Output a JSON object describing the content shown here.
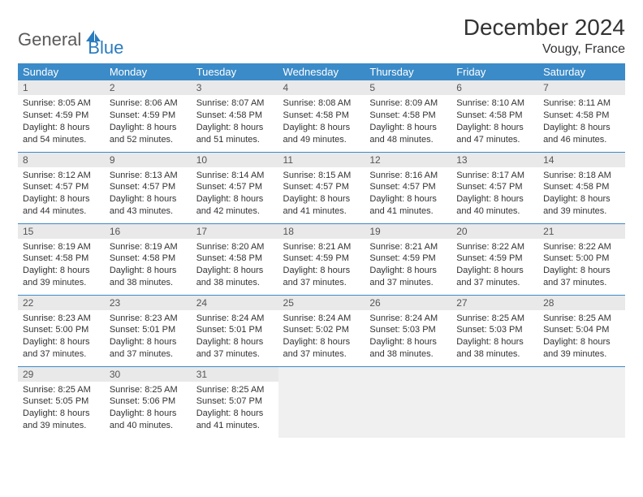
{
  "logo": {
    "text1": "General",
    "text2": "Blue"
  },
  "title": "December 2024",
  "location": "Vougy, France",
  "colors": {
    "header_bg": "#3b8bc8",
    "header_text": "#ffffff",
    "row_divider": "#3b8bc8",
    "daynum_bg": "#e9e9e9",
    "empty_bg": "#f0f0f0",
    "body_text": "#333333",
    "logo_gray": "#5a5a5a",
    "logo_blue": "#2b7bbf"
  },
  "day_headers": [
    "Sunday",
    "Monday",
    "Tuesday",
    "Wednesday",
    "Thursday",
    "Friday",
    "Saturday"
  ],
  "weeks": [
    [
      {
        "n": "1",
        "sr": "Sunrise: 8:05 AM",
        "ss": "Sunset: 4:59 PM",
        "dl": "Daylight: 8 hours and 54 minutes."
      },
      {
        "n": "2",
        "sr": "Sunrise: 8:06 AM",
        "ss": "Sunset: 4:59 PM",
        "dl": "Daylight: 8 hours and 52 minutes."
      },
      {
        "n": "3",
        "sr": "Sunrise: 8:07 AM",
        "ss": "Sunset: 4:58 PM",
        "dl": "Daylight: 8 hours and 51 minutes."
      },
      {
        "n": "4",
        "sr": "Sunrise: 8:08 AM",
        "ss": "Sunset: 4:58 PM",
        "dl": "Daylight: 8 hours and 49 minutes."
      },
      {
        "n": "5",
        "sr": "Sunrise: 8:09 AM",
        "ss": "Sunset: 4:58 PM",
        "dl": "Daylight: 8 hours and 48 minutes."
      },
      {
        "n": "6",
        "sr": "Sunrise: 8:10 AM",
        "ss": "Sunset: 4:58 PM",
        "dl": "Daylight: 8 hours and 47 minutes."
      },
      {
        "n": "7",
        "sr": "Sunrise: 8:11 AM",
        "ss": "Sunset: 4:58 PM",
        "dl": "Daylight: 8 hours and 46 minutes."
      }
    ],
    [
      {
        "n": "8",
        "sr": "Sunrise: 8:12 AM",
        "ss": "Sunset: 4:57 PM",
        "dl": "Daylight: 8 hours and 44 minutes."
      },
      {
        "n": "9",
        "sr": "Sunrise: 8:13 AM",
        "ss": "Sunset: 4:57 PM",
        "dl": "Daylight: 8 hours and 43 minutes."
      },
      {
        "n": "10",
        "sr": "Sunrise: 8:14 AM",
        "ss": "Sunset: 4:57 PM",
        "dl": "Daylight: 8 hours and 42 minutes."
      },
      {
        "n": "11",
        "sr": "Sunrise: 8:15 AM",
        "ss": "Sunset: 4:57 PM",
        "dl": "Daylight: 8 hours and 41 minutes."
      },
      {
        "n": "12",
        "sr": "Sunrise: 8:16 AM",
        "ss": "Sunset: 4:57 PM",
        "dl": "Daylight: 8 hours and 41 minutes."
      },
      {
        "n": "13",
        "sr": "Sunrise: 8:17 AM",
        "ss": "Sunset: 4:57 PM",
        "dl": "Daylight: 8 hours and 40 minutes."
      },
      {
        "n": "14",
        "sr": "Sunrise: 8:18 AM",
        "ss": "Sunset: 4:58 PM",
        "dl": "Daylight: 8 hours and 39 minutes."
      }
    ],
    [
      {
        "n": "15",
        "sr": "Sunrise: 8:19 AM",
        "ss": "Sunset: 4:58 PM",
        "dl": "Daylight: 8 hours and 39 minutes."
      },
      {
        "n": "16",
        "sr": "Sunrise: 8:19 AM",
        "ss": "Sunset: 4:58 PM",
        "dl": "Daylight: 8 hours and 38 minutes."
      },
      {
        "n": "17",
        "sr": "Sunrise: 8:20 AM",
        "ss": "Sunset: 4:58 PM",
        "dl": "Daylight: 8 hours and 38 minutes."
      },
      {
        "n": "18",
        "sr": "Sunrise: 8:21 AM",
        "ss": "Sunset: 4:59 PM",
        "dl": "Daylight: 8 hours and 37 minutes."
      },
      {
        "n": "19",
        "sr": "Sunrise: 8:21 AM",
        "ss": "Sunset: 4:59 PM",
        "dl": "Daylight: 8 hours and 37 minutes."
      },
      {
        "n": "20",
        "sr": "Sunrise: 8:22 AM",
        "ss": "Sunset: 4:59 PM",
        "dl": "Daylight: 8 hours and 37 minutes."
      },
      {
        "n": "21",
        "sr": "Sunrise: 8:22 AM",
        "ss": "Sunset: 5:00 PM",
        "dl": "Daylight: 8 hours and 37 minutes."
      }
    ],
    [
      {
        "n": "22",
        "sr": "Sunrise: 8:23 AM",
        "ss": "Sunset: 5:00 PM",
        "dl": "Daylight: 8 hours and 37 minutes."
      },
      {
        "n": "23",
        "sr": "Sunrise: 8:23 AM",
        "ss": "Sunset: 5:01 PM",
        "dl": "Daylight: 8 hours and 37 minutes."
      },
      {
        "n": "24",
        "sr": "Sunrise: 8:24 AM",
        "ss": "Sunset: 5:01 PM",
        "dl": "Daylight: 8 hours and 37 minutes."
      },
      {
        "n": "25",
        "sr": "Sunrise: 8:24 AM",
        "ss": "Sunset: 5:02 PM",
        "dl": "Daylight: 8 hours and 37 minutes."
      },
      {
        "n": "26",
        "sr": "Sunrise: 8:24 AM",
        "ss": "Sunset: 5:03 PM",
        "dl": "Daylight: 8 hours and 38 minutes."
      },
      {
        "n": "27",
        "sr": "Sunrise: 8:25 AM",
        "ss": "Sunset: 5:03 PM",
        "dl": "Daylight: 8 hours and 38 minutes."
      },
      {
        "n": "28",
        "sr": "Sunrise: 8:25 AM",
        "ss": "Sunset: 5:04 PM",
        "dl": "Daylight: 8 hours and 39 minutes."
      }
    ],
    [
      {
        "n": "29",
        "sr": "Sunrise: 8:25 AM",
        "ss": "Sunset: 5:05 PM",
        "dl": "Daylight: 8 hours and 39 minutes."
      },
      {
        "n": "30",
        "sr": "Sunrise: 8:25 AM",
        "ss": "Sunset: 5:06 PM",
        "dl": "Daylight: 8 hours and 40 minutes."
      },
      {
        "n": "31",
        "sr": "Sunrise: 8:25 AM",
        "ss": "Sunset: 5:07 PM",
        "dl": "Daylight: 8 hours and 41 minutes."
      },
      null,
      null,
      null,
      null
    ]
  ]
}
